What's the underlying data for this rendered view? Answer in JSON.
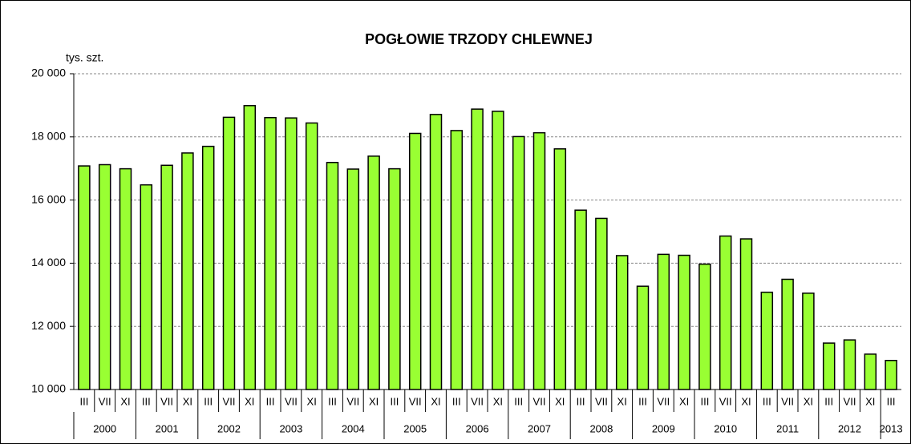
{
  "chart_data": {
    "type": "bar",
    "title": "POGŁOWIE TRZODY  CHLEWNEJ",
    "y_label": "tys. szt.",
    "categories": [
      "III",
      "VII",
      "XI",
      "III",
      "VII",
      "XI",
      "III",
      "VII",
      "XI",
      "III",
      "VII",
      "XI",
      "III",
      "VII",
      "XI",
      "III",
      "VII",
      "XI",
      "III",
      "VII",
      "XI",
      "III",
      "VII",
      "XI",
      "III",
      "VII",
      "XI",
      "III",
      "VII",
      "XI",
      "III",
      "VII",
      "XI",
      "III",
      "VII",
      "XI",
      "III",
      "VII",
      "XI",
      "III"
    ],
    "category_groups": [
      {
        "label": "2000",
        "span": 3
      },
      {
        "label": "2001",
        "span": 3
      },
      {
        "label": "2002",
        "span": 3
      },
      {
        "label": "2003",
        "span": 3
      },
      {
        "label": "2004",
        "span": 3
      },
      {
        "label": "2005",
        "span": 3
      },
      {
        "label": "2006",
        "span": 3
      },
      {
        "label": "2007",
        "span": 3
      },
      {
        "label": "2008",
        "span": 3
      },
      {
        "label": "2009",
        "span": 3
      },
      {
        "label": "2010",
        "span": 3
      },
      {
        "label": "2011",
        "span": 3
      },
      {
        "label": "2012",
        "span": 3
      },
      {
        "label": "2013",
        "span": 1
      }
    ],
    "values": [
      17080,
      17120,
      16990,
      16480,
      17100,
      17490,
      17700,
      18620,
      18990,
      18610,
      18600,
      18440,
      17190,
      16980,
      17390,
      16990,
      18110,
      18710,
      18200,
      18880,
      18810,
      18010,
      18130,
      17620,
      15680,
      15420,
      14240,
      13270,
      14280,
      14250,
      13970,
      14860,
      14770,
      13080,
      13490,
      13050,
      11470,
      11570,
      11120,
      10920
    ],
    "color": "#99ff33",
    "ylim": [
      10000,
      20000
    ],
    "yticks": [
      {
        "value": 10000,
        "label": "10 000"
      },
      {
        "value": 12000,
        "label": "12 000"
      },
      {
        "value": 14000,
        "label": "14 000"
      },
      {
        "value": 16000,
        "label": "16 000"
      },
      {
        "value": 18000,
        "label": "18 000"
      },
      {
        "value": 20000,
        "label": "20 000"
      }
    ],
    "grid": true
  }
}
